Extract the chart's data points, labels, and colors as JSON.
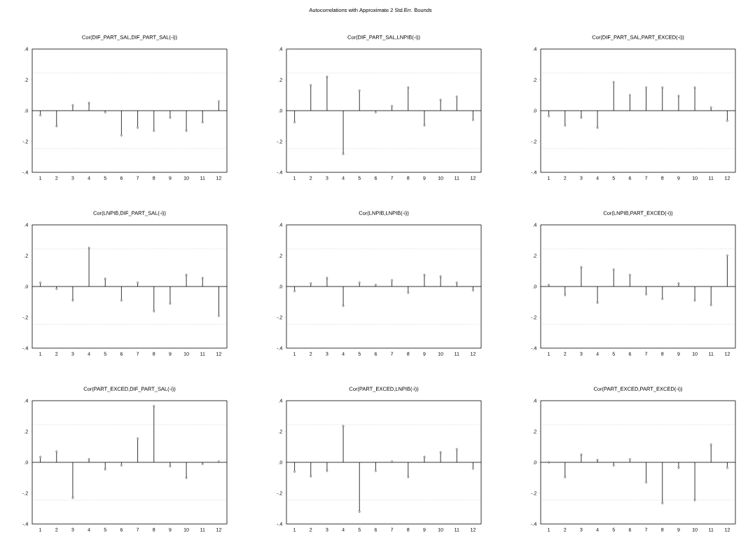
{
  "chart_data": [
    {
      "type": "lollipop",
      "subtitle": "Cor(DIF_PART_SAL,DIF_PART_SAL(-i))",
      "categories": [
        "1",
        "2",
        "3",
        "4",
        "5",
        "6",
        "7",
        "8",
        "9",
        "10",
        "11",
        "12"
      ],
      "values": [
        -0.03,
        -0.1,
        0.035,
        0.05,
        -0.01,
        -0.16,
        -0.11,
        -0.13,
        -0.045,
        -0.13,
        -0.075,
        0.06
      ],
      "color": "#000000",
      "marker": "diamond",
      "ylim": [
        -0.4,
        0.4
      ],
      "yticks": [
        {
          "value": -0.4,
          "label": "-.4"
        },
        {
          "value": -0.2,
          "label": "-.2"
        },
        {
          "value": 0,
          "label": ".0"
        },
        {
          "value": 0.2,
          "label": ".2"
        },
        {
          "value": 0.4,
          "label": ".4"
        }
      ],
      "ref_lines": [
        {
          "axis": "y",
          "value": 0.245,
          "color": "#a0a0a0",
          "line_style": "dotted"
        },
        {
          "axis": "y",
          "value": -0.245,
          "color": "#a0a0a0",
          "line_style": "dotted"
        }
      ]
    },
    {
      "type": "lollipop",
      "title": "Autocorrelations with Approximate 2 Std.Err. Bounds",
      "subtitle": "Cor(DIF_PART_SAL,LNPIB(-i))",
      "categories": [
        "1",
        "2",
        "3",
        "4",
        "5",
        "6",
        "7",
        "8",
        "9",
        "10",
        "11",
        "12"
      ],
      "values": [
        -0.075,
        0.165,
        0.22,
        -0.28,
        0.13,
        -0.01,
        0.03,
        0.15,
        -0.095,
        0.07,
        0.09,
        -0.06
      ],
      "color": "#000000",
      "marker": "diamond",
      "ylim": [
        -0.4,
        0.4
      ],
      "yticks": [
        {
          "value": -0.4,
          "label": "-.4"
        },
        {
          "value": -0.2,
          "label": "-.2"
        },
        {
          "value": 0,
          "label": ".0"
        },
        {
          "value": 0.2,
          "label": ".2"
        },
        {
          "value": 0.4,
          "label": ".4"
        }
      ],
      "ref_lines": [
        {
          "axis": "y",
          "value": 0.245,
          "color": "#a0a0a0",
          "line_style": "dotted"
        },
        {
          "axis": "y",
          "value": -0.245,
          "color": "#a0a0a0",
          "line_style": "dotted"
        }
      ]
    },
    {
      "type": "lollipop",
      "subtitle": "Cor(DIF_PART_SAL,PART_EXCED(-i))",
      "categories": [
        "1",
        "2",
        "3",
        "4",
        "5",
        "6",
        "7",
        "8",
        "9",
        "10",
        "11",
        "12"
      ],
      "values": [
        -0.035,
        -0.095,
        -0.045,
        -0.11,
        0.185,
        0.1,
        0.15,
        0.15,
        0.095,
        0.15,
        0.02,
        -0.065
      ],
      "color": "#000000",
      "marker": "diamond",
      "ylim": [
        -0.4,
        0.4
      ],
      "yticks": [
        {
          "value": -0.4,
          "label": "-.4"
        },
        {
          "value": -0.2,
          "label": "-.2"
        },
        {
          "value": 0,
          "label": ".0"
        },
        {
          "value": 0.2,
          "label": ".2"
        },
        {
          "value": 0.4,
          "label": ".4"
        }
      ],
      "ref_lines": [
        {
          "axis": "y",
          "value": 0.245,
          "color": "#a0a0a0",
          "line_style": "dotted"
        },
        {
          "axis": "y",
          "value": -0.245,
          "color": "#a0a0a0",
          "line_style": "dotted"
        }
      ]
    },
    {
      "type": "lollipop",
      "subtitle": "Cor(LNPIB,DIF_PART_SAL(-i))",
      "categories": [
        "1",
        "2",
        "3",
        "4",
        "5",
        "6",
        "7",
        "8",
        "9",
        "10",
        "11",
        "12"
      ],
      "values": [
        0.025,
        -0.015,
        -0.09,
        0.25,
        0.05,
        -0.09,
        0.025,
        -0.16,
        -0.11,
        0.075,
        0.055,
        -0.19
      ],
      "color": "#000000",
      "marker": "diamond",
      "ylim": [
        -0.4,
        0.4
      ],
      "yticks": [
        {
          "value": -0.4,
          "label": "-.4"
        },
        {
          "value": -0.2,
          "label": "-.2"
        },
        {
          "value": 0,
          "label": ".0"
        },
        {
          "value": 0.2,
          "label": ".2"
        },
        {
          "value": 0.4,
          "label": ".4"
        }
      ],
      "ref_lines": [
        {
          "axis": "y",
          "value": 0.245,
          "color": "#a0a0a0",
          "line_style": "dotted"
        },
        {
          "axis": "y",
          "value": -0.245,
          "color": "#a0a0a0",
          "line_style": "dotted"
        }
      ]
    },
    {
      "type": "lollipop",
      "subtitle": "Cor(LNPIB,LNPIB(-i))",
      "categories": [
        "1",
        "2",
        "3",
        "4",
        "5",
        "6",
        "7",
        "8",
        "9",
        "10",
        "11",
        "12"
      ],
      "values": [
        -0.03,
        0.02,
        0.055,
        -0.125,
        0.025,
        0.01,
        0.04,
        -0.04,
        0.075,
        0.065,
        0.025,
        -0.025
      ],
      "color": "#000000",
      "marker": "diamond",
      "ylim": [
        -0.4,
        0.4
      ],
      "yticks": [
        {
          "value": -0.4,
          "label": "-.4"
        },
        {
          "value": -0.2,
          "label": "-.2"
        },
        {
          "value": 0,
          "label": ".0"
        },
        {
          "value": 0.2,
          "label": ".2"
        },
        {
          "value": 0.4,
          "label": ".4"
        }
      ],
      "ref_lines": [
        {
          "axis": "y",
          "value": 0.245,
          "color": "#a0a0a0",
          "line_style": "dotted"
        },
        {
          "axis": "y",
          "value": -0.245,
          "color": "#a0a0a0",
          "line_style": "dotted"
        }
      ]
    },
    {
      "type": "lollipop",
      "subtitle": "Cor(LNPIB,PART_EXCED(-i))",
      "categories": [
        "1",
        "2",
        "3",
        "4",
        "5",
        "6",
        "7",
        "8",
        "9",
        "10",
        "11",
        "12"
      ],
      "values": [
        0.01,
        -0.055,
        0.125,
        -0.105,
        0.11,
        0.075,
        -0.05,
        -0.08,
        0.02,
        -0.09,
        -0.12,
        0.2
      ],
      "color": "#000000",
      "marker": "diamond",
      "ylim": [
        -0.4,
        0.4
      ],
      "yticks": [
        {
          "value": -0.4,
          "label": "-.4"
        },
        {
          "value": -0.2,
          "label": "-.2"
        },
        {
          "value": 0,
          "label": ".0"
        },
        {
          "value": 0.2,
          "label": ".2"
        },
        {
          "value": 0.4,
          "label": ".4"
        }
      ],
      "ref_lines": [
        {
          "axis": "y",
          "value": 0.245,
          "color": "#a0a0a0",
          "line_style": "dotted"
        },
        {
          "axis": "y",
          "value": -0.245,
          "color": "#a0a0a0",
          "line_style": "dotted"
        }
      ]
    },
    {
      "type": "lollipop",
      "subtitle": "Cor(PART_EXCED,DIF_PART_SAL(-i))",
      "categories": [
        "1",
        "2",
        "3",
        "4",
        "5",
        "6",
        "7",
        "8",
        "9",
        "10",
        "11",
        "12"
      ],
      "values": [
        0.035,
        0.07,
        -0.23,
        0.02,
        -0.045,
        -0.02,
        0.155,
        0.365,
        -0.025,
        -0.1,
        -0.01,
        0.005
      ],
      "color": "#000000",
      "marker": "diamond",
      "ylim": [
        -0.4,
        0.4
      ],
      "yticks": [
        {
          "value": -0.4,
          "label": "-.4"
        },
        {
          "value": -0.2,
          "label": "-.2"
        },
        {
          "value": 0,
          "label": ".0"
        },
        {
          "value": 0.2,
          "label": ".2"
        },
        {
          "value": 0.4,
          "label": ".4"
        }
      ],
      "ref_lines": [
        {
          "axis": "y",
          "value": 0.245,
          "color": "#a0a0a0",
          "line_style": "dotted"
        },
        {
          "axis": "y",
          "value": -0.245,
          "color": "#a0a0a0",
          "line_style": "dotted"
        }
      ]
    },
    {
      "type": "lollipop",
      "subtitle": "Cor(PART_EXCED,LNPIB(-i))",
      "categories": [
        "1",
        "2",
        "3",
        "4",
        "5",
        "6",
        "7",
        "8",
        "9",
        "10",
        "11",
        "12"
      ],
      "values": [
        -0.06,
        -0.09,
        -0.055,
        0.235,
        -0.32,
        -0.055,
        0.005,
        -0.095,
        0.035,
        0.065,
        0.085,
        -0.04
      ],
      "color": "#000000",
      "marker": "diamond",
      "ylim": [
        -0.4,
        0.4
      ],
      "yticks": [
        {
          "value": -0.4,
          "label": "-.4"
        },
        {
          "value": -0.2,
          "label": "-.2"
        },
        {
          "value": 0,
          "label": ".0"
        },
        {
          "value": 0.2,
          "label": ".2"
        },
        {
          "value": 0.4,
          "label": ".4"
        }
      ],
      "ref_lines": [
        {
          "axis": "y",
          "value": 0.245,
          "color": "#a0a0a0",
          "line_style": "dotted"
        },
        {
          "axis": "y",
          "value": -0.245,
          "color": "#a0a0a0",
          "line_style": "dotted"
        }
      ]
    },
    {
      "type": "lollipop",
      "subtitle": "Cor(PART_EXCED,PART_EXCED(-i))",
      "categories": [
        "1",
        "2",
        "3",
        "4",
        "5",
        "6",
        "7",
        "8",
        "9",
        "10",
        "11",
        "12"
      ],
      "values": [
        0.0,
        -0.095,
        0.05,
        0.015,
        -0.02,
        0.02,
        -0.13,
        -0.265,
        -0.035,
        -0.245,
        0.115,
        -0.035
      ],
      "color": "#000000",
      "marker": "diamond",
      "ylim": [
        -0.4,
        0.4
      ],
      "yticks": [
        {
          "value": -0.4,
          "label": "-.4"
        },
        {
          "value": -0.2,
          "label": "-.2"
        },
        {
          "value": 0,
          "label": ".0"
        },
        {
          "value": 0.2,
          "label": ".2"
        },
        {
          "value": 0.4,
          "label": ".4"
        }
      ],
      "ref_lines": [
        {
          "axis": "y",
          "value": 0.245,
          "color": "#a0a0a0",
          "line_style": "dotted"
        },
        {
          "axis": "y",
          "value": -0.245,
          "color": "#a0a0a0",
          "line_style": "dotted"
        }
      ]
    }
  ]
}
